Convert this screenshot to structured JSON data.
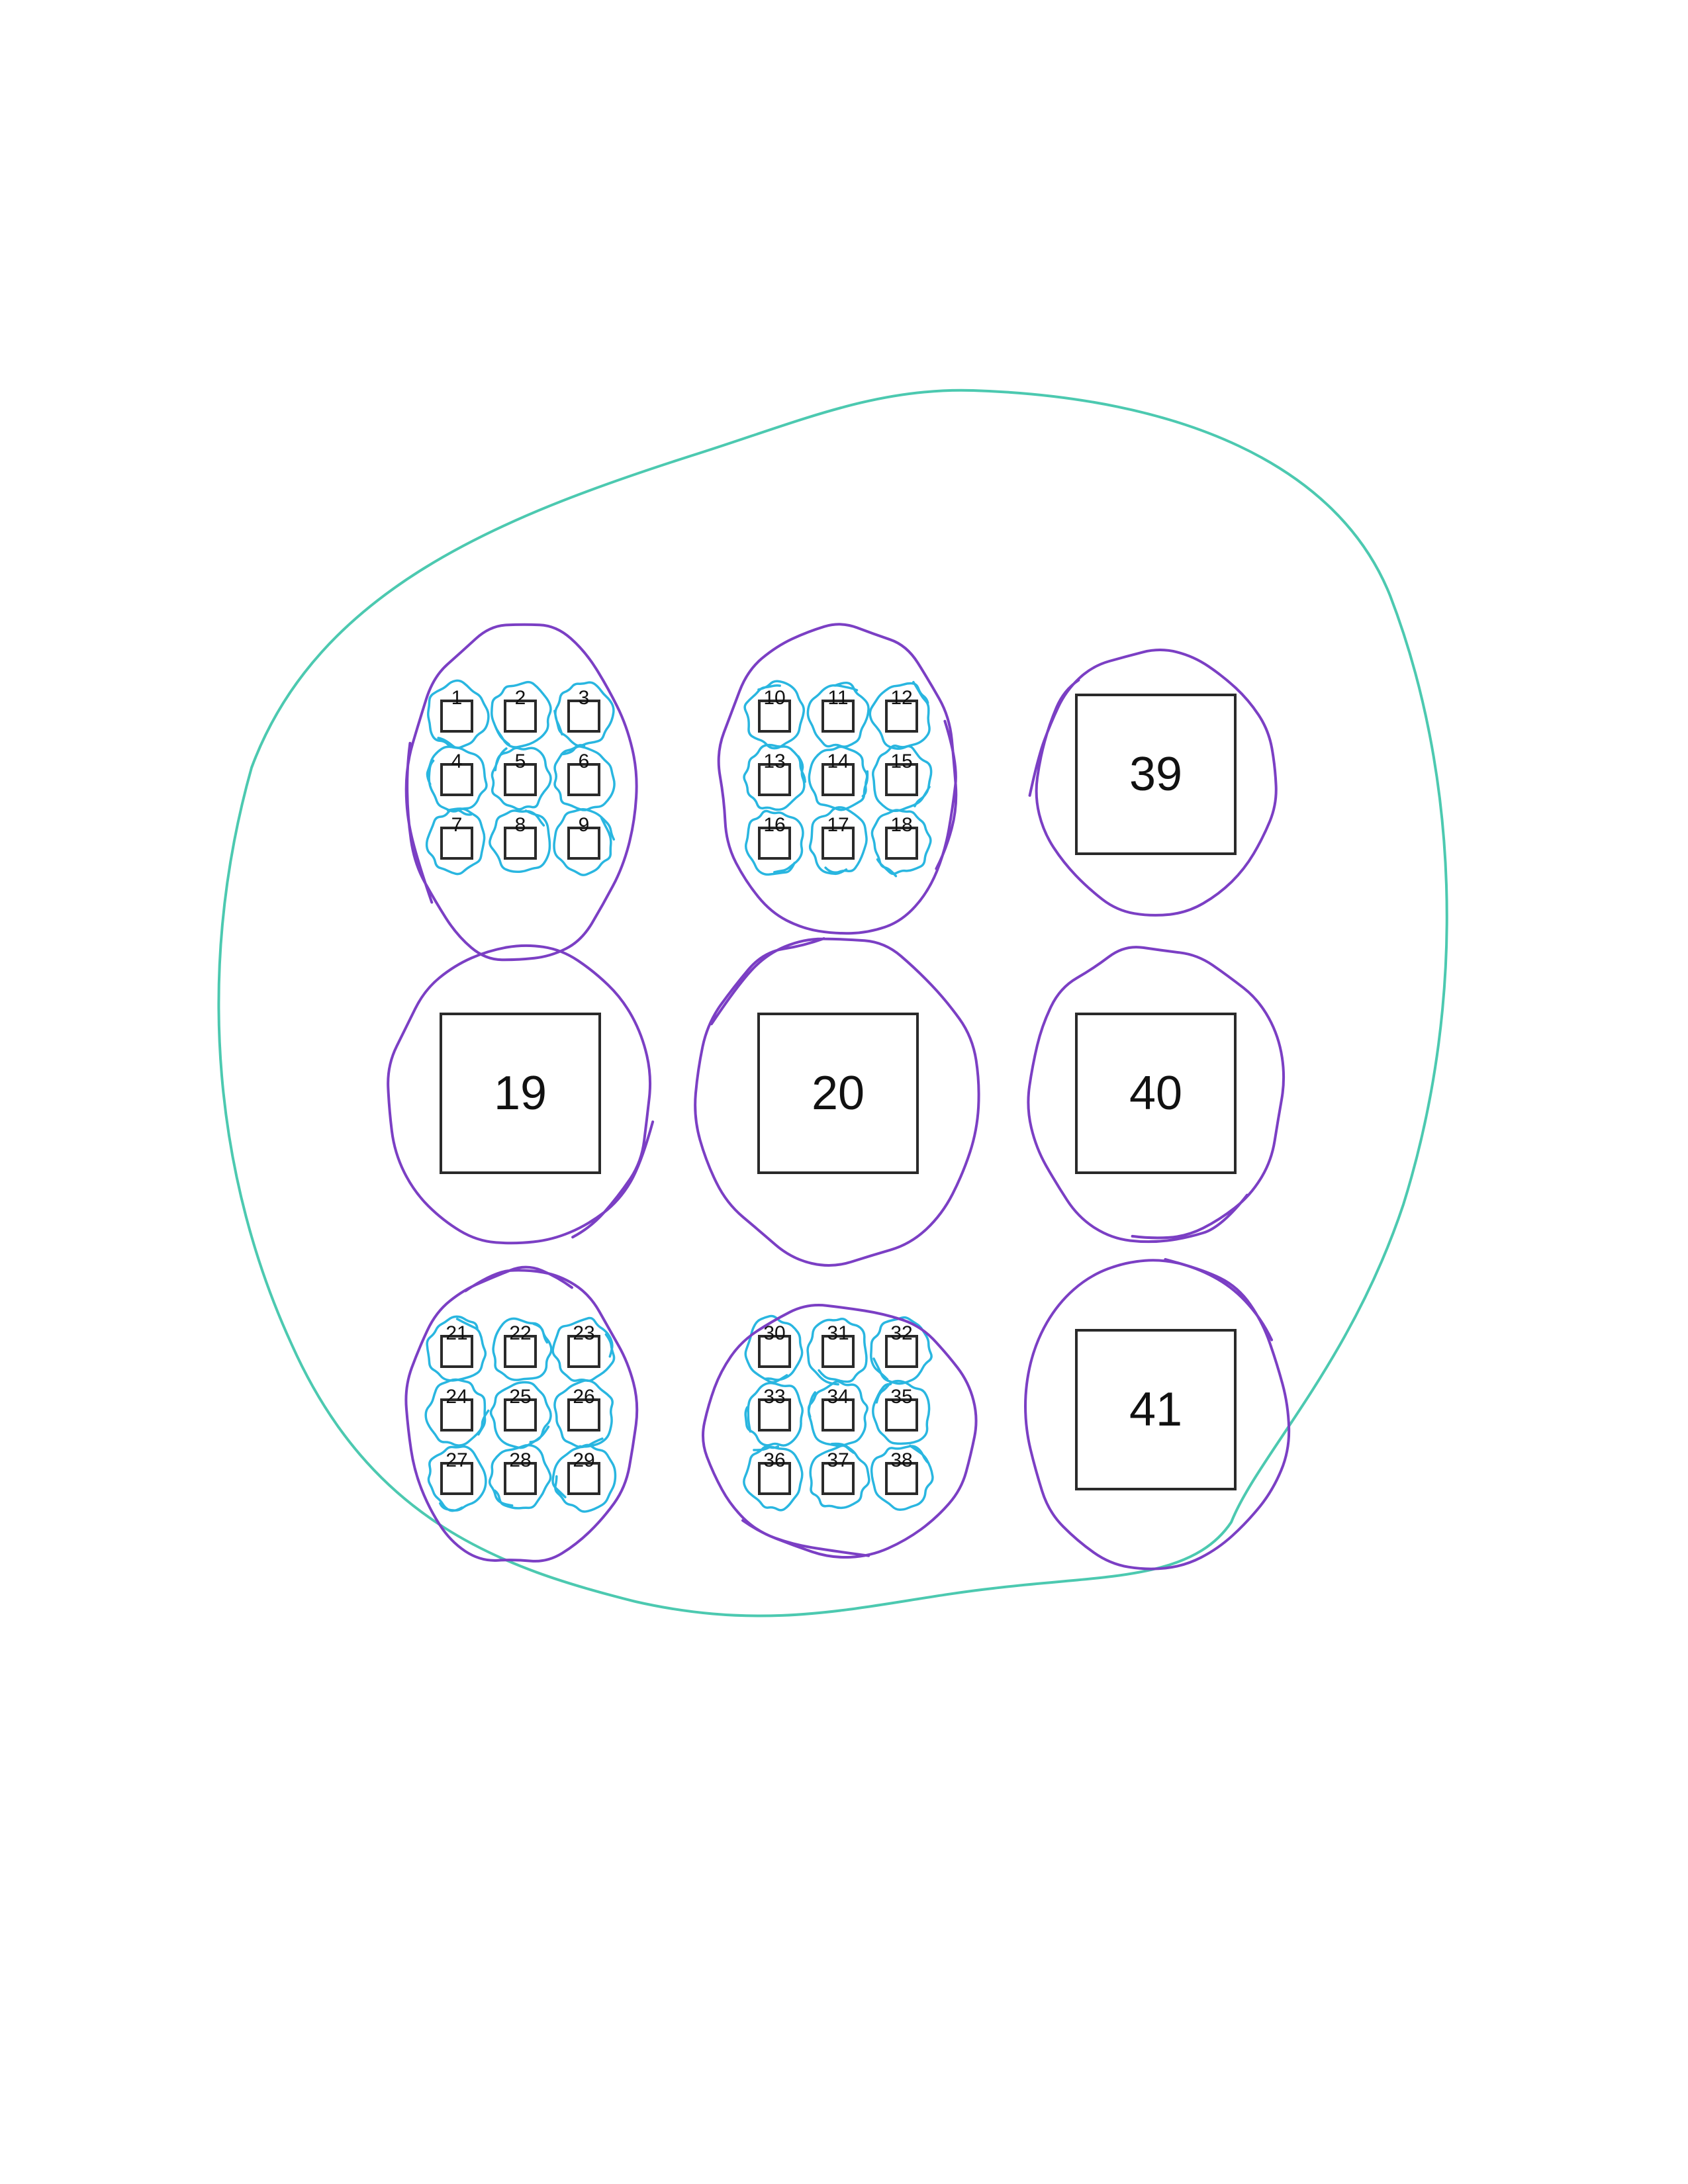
{
  "colors": {
    "outer_loop": "#4cc9b0",
    "group_loop": "#7b3fc4",
    "item_loop": "#29b6e0",
    "box_stroke": "#2a2a2a",
    "background": "#ffffff"
  },
  "groups": [
    {
      "kind": "grid",
      "labels": [
        "1",
        "2",
        "3",
        "4",
        "5",
        "6",
        "7",
        "8",
        "9"
      ]
    },
    {
      "kind": "grid",
      "labels": [
        "10",
        "11",
        "12",
        "13",
        "14",
        "15",
        "16",
        "17",
        "18"
      ]
    },
    {
      "kind": "single",
      "label": "39"
    },
    {
      "kind": "single",
      "label": "19"
    },
    {
      "kind": "single",
      "label": "20"
    },
    {
      "kind": "single",
      "label": "40"
    },
    {
      "kind": "grid",
      "labels": [
        "21",
        "22",
        "23",
        "24",
        "25",
        "26",
        "27",
        "28",
        "29"
      ]
    },
    {
      "kind": "grid",
      "labels": [
        "30",
        "31",
        "32",
        "33",
        "34",
        "35",
        "36",
        "37",
        "38"
      ]
    },
    {
      "kind": "single",
      "label": "41"
    }
  ]
}
